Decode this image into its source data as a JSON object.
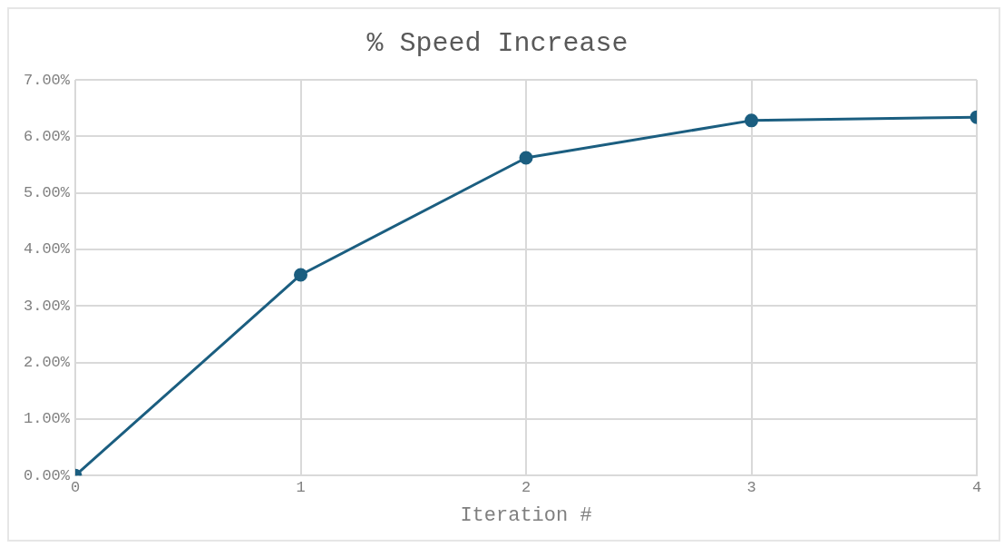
{
  "chart_data": {
    "type": "line",
    "title": "% Speed Increase",
    "xlabel": "Iteration #",
    "x": [
      0,
      1,
      2,
      3,
      4
    ],
    "xlim": [
      0,
      4
    ],
    "xticks": [
      0,
      1,
      2,
      3,
      4
    ],
    "ylim": [
      0,
      7
    ],
    "yticks": [
      {
        "value": 0,
        "label": "0.00%"
      },
      {
        "value": 1,
        "label": "1.00%"
      },
      {
        "value": 2,
        "label": "2.00%"
      },
      {
        "value": 3,
        "label": "3.00%"
      },
      {
        "value": 4,
        "label": "4.00%"
      },
      {
        "value": 5,
        "label": "5.00%"
      },
      {
        "value": 6,
        "label": "6.00%"
      },
      {
        "value": 7,
        "label": "7.00%"
      }
    ],
    "series": [
      {
        "color": "#1b5e80",
        "values": [
          0,
          3.55,
          5.62,
          6.28,
          6.34
        ]
      }
    ],
    "grid": true,
    "legend": false,
    "marker": "circle",
    "line_style": "solid"
  }
}
